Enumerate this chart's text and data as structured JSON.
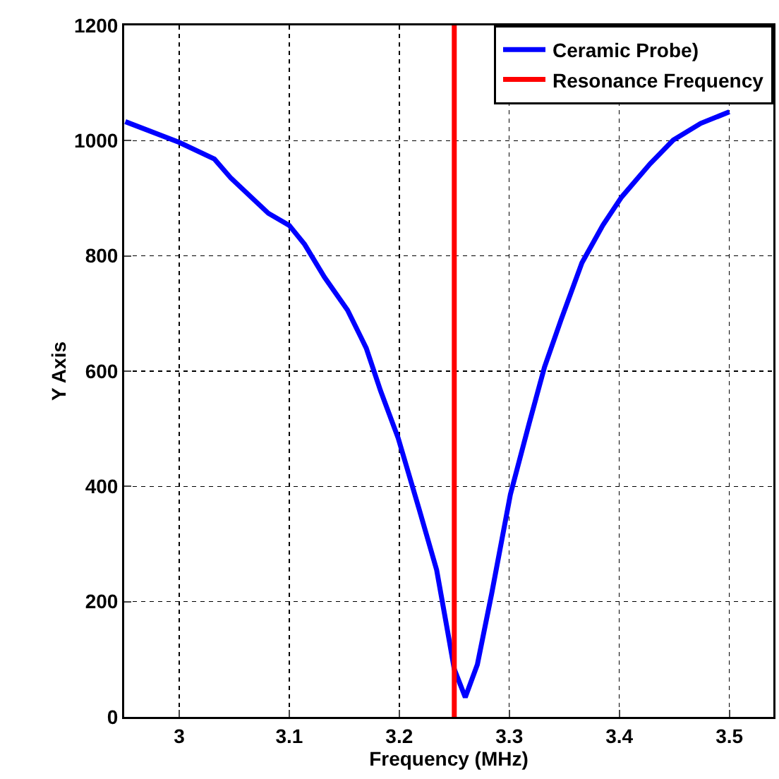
{
  "chart_data": {
    "type": "line",
    "xlabel": "Frequency (MHz)",
    "ylabel": "Y Axis",
    "x": [
      2.951,
      3.0,
      3.032,
      3.047,
      3.081,
      3.1,
      3.114,
      3.132,
      3.153,
      3.17,
      3.183,
      3.199,
      3.218,
      3.234,
      3.244,
      3.25,
      3.26,
      3.271,
      3.284,
      3.301,
      3.318,
      3.332,
      3.347,
      3.366,
      3.385,
      3.402,
      3.428,
      3.449,
      3.474,
      3.5
    ],
    "series": [
      {
        "name": "Ceramic Probe)",
        "color": "#0000ff",
        "values": [
          1033,
          997,
          968,
          935,
          874,
          853,
          820,
          763,
          706,
          640,
          566,
          484,
          361,
          255,
          148,
          83,
          34,
          91,
          214,
          386,
          509,
          607,
          689,
          788,
          853,
          902,
          960,
          1001,
          1030,
          1050
        ]
      },
      {
        "name": "Resonance Frequency",
        "type": "line",
        "color": "#ff0000",
        "x": [
          3.25,
          3.25
        ],
        "values": [
          0,
          1200
        ]
      }
    ],
    "xlim": [
      2.95,
      3.54
    ],
    "xticks": [
      3,
      3.1,
      3.2,
      3.3,
      3.4,
      3.5
    ],
    "ylim": [
      0,
      1200
    ],
    "yticks": [
      0,
      200,
      400,
      600,
      800,
      1000,
      1200
    ],
    "grid": true,
    "legend": "top right",
    "line_style": "solid",
    "marker": "none"
  }
}
